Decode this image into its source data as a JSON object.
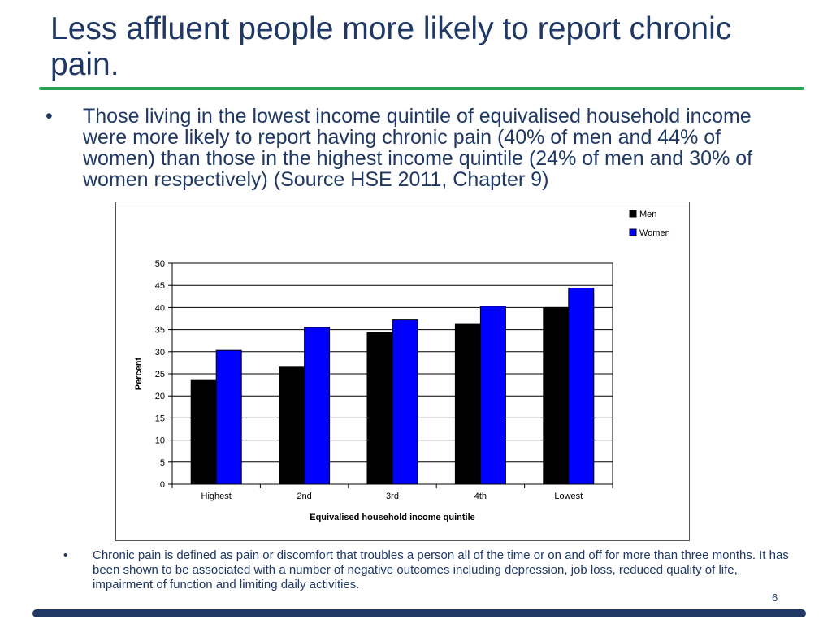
{
  "slide": {
    "title": "Less affluent people more likely to report chronic pain.",
    "bullet_main": "Those living in the lowest income quintile of equivalised household income were more likely to report having chronic pain (40% of men and 44% of women) than those in the highest income quintile (24% of men and 30% of women respectively) (Source HSE 2011, Chapter 9)",
    "bullet_symbol": "•",
    "bullet_note": "Chronic pain is defined as pain or discomfort that troubles a person all of the time or on and off for more than three months. It has been shown to be associated with a number of negative outcomes including depression, job loss, reduced quality of life, impairment of function and limiting daily activities.",
    "page_number": "6"
  },
  "colors": {
    "title": "#1f3864",
    "rule": "#2e9e4f",
    "footer": "#1f3864",
    "men": "#000000",
    "women": "#0000ff"
  },
  "chart_data": {
    "type": "bar",
    "categories": [
      "Highest",
      "2nd",
      "3rd",
      "4th",
      "Lowest"
    ],
    "series": [
      {
        "name": "Men",
        "color": "#000000",
        "values": [
          23.5,
          26.5,
          34.3,
          36.2,
          40
        ]
      },
      {
        "name": "Women",
        "color": "#0000ff",
        "values": [
          30.3,
          35.5,
          37.2,
          40.3,
          44.4
        ]
      }
    ],
    "xlabel": "Equivalised household income quintile",
    "ylabel": "Percent",
    "ylim": [
      0,
      50
    ],
    "yticks": [
      0,
      5,
      10,
      15,
      20,
      25,
      30,
      35,
      40,
      45,
      50
    ],
    "grid": true,
    "legend_position": "top-right"
  }
}
